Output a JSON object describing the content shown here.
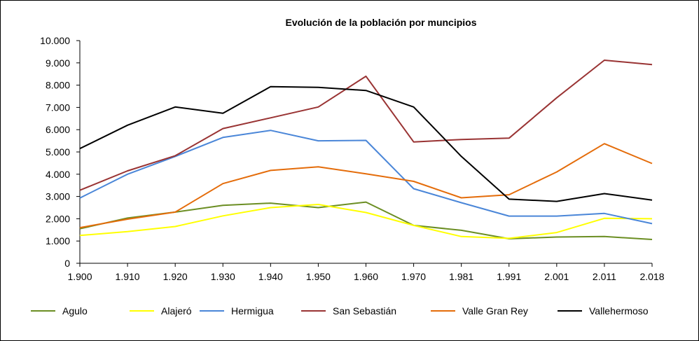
{
  "chart_data": {
    "type": "line",
    "title": "Evolución de la población por muncipios",
    "xlabel": "",
    "ylabel": "",
    "categories": [
      "1.900",
      "1.910",
      "1.920",
      "1.930",
      "1.940",
      "1.950",
      "1.960",
      "1.970",
      "1.981",
      "1.991",
      "2.001",
      "2.011",
      "2.018"
    ],
    "ylim": [
      0,
      10000
    ],
    "yticks": [
      0,
      1000,
      2000,
      3000,
      4000,
      5000,
      6000,
      7000,
      8000,
      9000,
      10000
    ],
    "ytick_labels": [
      "0",
      "1.000",
      "2.000",
      "3.000",
      "4.000",
      "5.000",
      "6.000",
      "7.000",
      "8.000",
      "9.000",
      "10.000"
    ],
    "grid": false,
    "legend_position": "bottom",
    "series": [
      {
        "name": "Agulo",
        "color": "#6b8e23",
        "values": [
          1550,
          2030,
          2300,
          2600,
          2700,
          2500,
          2750,
          1700,
          1480,
          1100,
          1180,
          1200,
          1070
        ]
      },
      {
        "name": "Alajeró",
        "color": "#ffff00",
        "values": [
          1250,
          1420,
          1650,
          2130,
          2500,
          2640,
          2280,
          1700,
          1200,
          1120,
          1380,
          2020,
          2000
        ]
      },
      {
        "name": "Hermigua",
        "color": "#4a86d8",
        "values": [
          2930,
          4000,
          4800,
          5650,
          5970,
          5500,
          5520,
          3350,
          2720,
          2120,
          2120,
          2240,
          1780
        ]
      },
      {
        "name": "San Sebastián",
        "color": "#993333",
        "values": [
          3280,
          4150,
          4830,
          6050,
          6530,
          7020,
          8400,
          5450,
          5560,
          5620,
          7430,
          9120,
          8920
        ]
      },
      {
        "name": "Valle Gran Rey",
        "color": "#e46c0a",
        "values": [
          1600,
          1980,
          2300,
          3580,
          4170,
          4330,
          4020,
          3680,
          2940,
          3080,
          4100,
          5370,
          4480
        ]
      },
      {
        "name": "Vallehermoso",
        "color": "#000000",
        "values": [
          5150,
          6200,
          7020,
          6740,
          7930,
          7900,
          7760,
          7020,
          4800,
          2880,
          2780,
          3130,
          2840
        ]
      }
    ]
  }
}
